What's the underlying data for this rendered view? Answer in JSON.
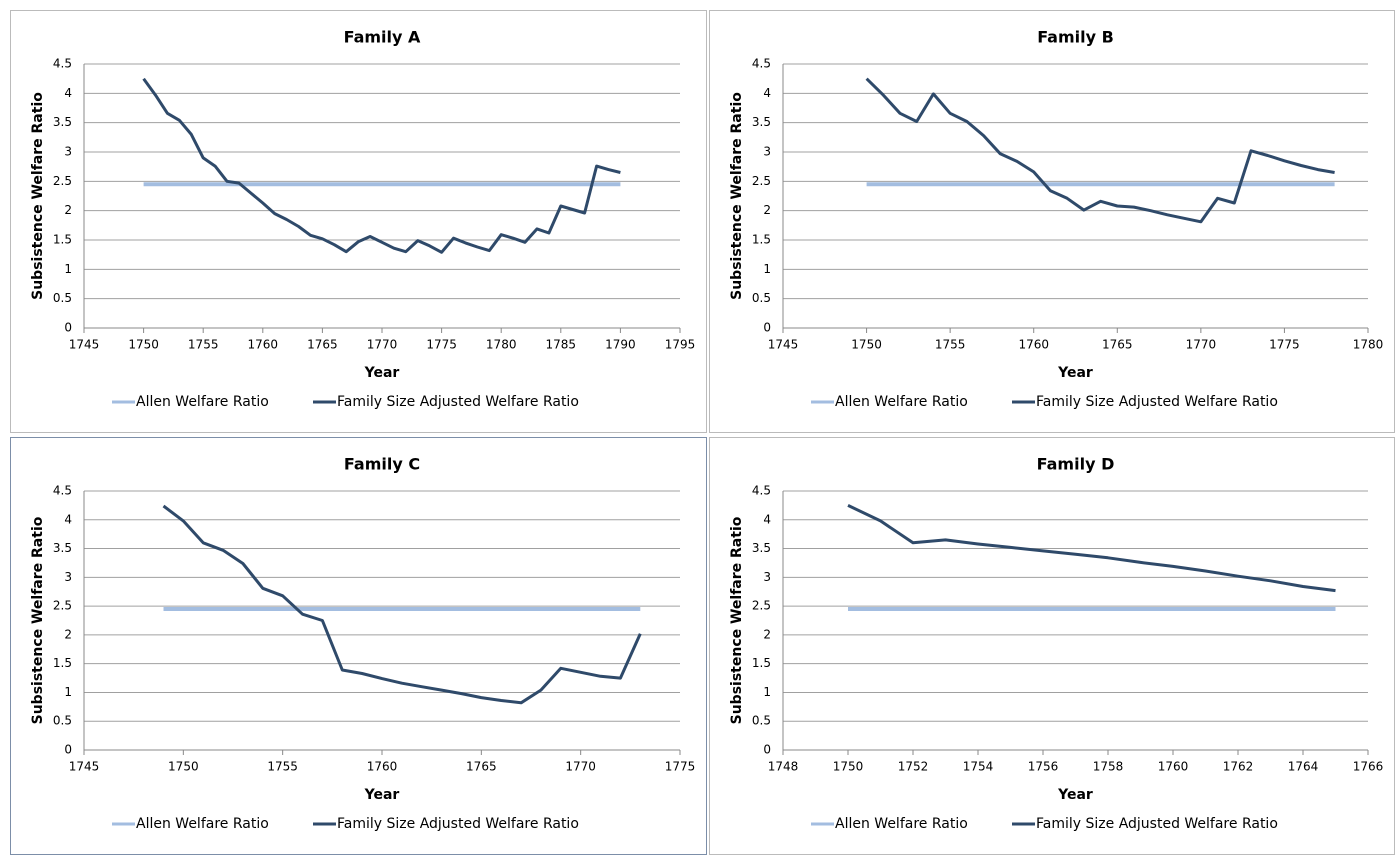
{
  "chart_data": [
    {
      "type": "line",
      "title": "Family A",
      "x_label": "Year",
      "y_label": "Subsistence Welfare Ratio",
      "x": [
        1750,
        1751,
        1752,
        1753,
        1754,
        1755,
        1756,
        1757,
        1758,
        1759,
        1760,
        1761,
        1762,
        1763,
        1764,
        1765,
        1766,
        1767,
        1768,
        1769,
        1770,
        1771,
        1772,
        1773,
        1774,
        1775,
        1776,
        1777,
        1778,
        1779,
        1780,
        1781,
        1782,
        1783,
        1784,
        1785,
        1786,
        1787,
        1788,
        1789,
        1790
      ],
      "series": [
        {
          "name": "Allen Welfare Ratio",
          "color": "#a3bde0",
          "values": [
            2.45,
            2.45,
            2.45,
            2.45,
            2.45,
            2.45,
            2.45,
            2.45,
            2.45,
            2.45,
            2.45,
            2.45,
            2.45,
            2.45,
            2.45,
            2.45,
            2.45,
            2.45,
            2.45,
            2.45,
            2.45,
            2.45,
            2.45,
            2.45,
            2.45,
            2.45,
            2.45,
            2.45,
            2.45,
            2.45,
            2.45,
            2.45,
            2.45,
            2.45,
            2.45,
            2.45,
            2.45,
            2.45,
            2.45,
            2.45,
            2.45
          ]
        },
        {
          "name": "Family Size Adjusted Welfare Ratio",
          "color": "#2f4a6a",
          "values": [
            4.25,
            3.97,
            3.66,
            3.54,
            3.3,
            2.9,
            2.76,
            2.5,
            2.47,
            2.3,
            2.13,
            1.95,
            1.85,
            1.73,
            1.58,
            1.52,
            1.42,
            1.3,
            1.47,
            1.56,
            1.46,
            1.36,
            1.3,
            1.49,
            1.4,
            1.29,
            1.53,
            1.45,
            1.38,
            1.32,
            1.59,
            1.53,
            1.46,
            1.69,
            1.62,
            2.08,
            2.02,
            1.96,
            2.76,
            2.7,
            2.65
          ]
        }
      ],
      "xlim": [
        1745,
        1795
      ],
      "xticks": [
        1745,
        1750,
        1755,
        1760,
        1765,
        1770,
        1775,
        1780,
        1785,
        1790,
        1795
      ],
      "ylim": [
        0,
        4.5
      ],
      "yticks": [
        0,
        0.5,
        1,
        1.5,
        2,
        2.5,
        3,
        3.5,
        4,
        4.5
      ],
      "grid": true,
      "legend": "bottom"
    },
    {
      "type": "line",
      "title": "Family B",
      "x_label": "Year",
      "y_label": "Subsistence Welfare Ratio",
      "x": [
        1750,
        1751,
        1752,
        1753,
        1754,
        1755,
        1756,
        1757,
        1758,
        1759,
        1760,
        1761,
        1762,
        1763,
        1764,
        1765,
        1766,
        1767,
        1768,
        1769,
        1770,
        1771,
        1772,
        1773,
        1774,
        1775,
        1776,
        1777,
        1778
      ],
      "series": [
        {
          "name": "Allen Welfare Ratio",
          "color": "#a3bde0",
          "values": [
            2.45,
            2.45,
            2.45,
            2.45,
            2.45,
            2.45,
            2.45,
            2.45,
            2.45,
            2.45,
            2.45,
            2.45,
            2.45,
            2.45,
            2.45,
            2.45,
            2.45,
            2.45,
            2.45,
            2.45,
            2.45,
            2.45,
            2.45,
            2.45,
            2.45,
            2.45,
            2.45,
            2.45,
            2.45
          ]
        },
        {
          "name": "Family Size Adjusted Welfare Ratio",
          "color": "#2f4a6a",
          "values": [
            4.25,
            3.97,
            3.66,
            3.52,
            3.99,
            3.66,
            3.52,
            3.28,
            2.97,
            2.84,
            2.66,
            2.34,
            2.21,
            2.01,
            2.16,
            2.08,
            2.06,
            2.0,
            1.93,
            1.87,
            1.81,
            2.21,
            2.13,
            3.02,
            2.94,
            2.85,
            2.77,
            2.7,
            2.65
          ]
        }
      ],
      "xlim": [
        1745,
        1780
      ],
      "xticks": [
        1745,
        1750,
        1755,
        1760,
        1765,
        1770,
        1775,
        1780
      ],
      "ylim": [
        0,
        4.5
      ],
      "yticks": [
        0,
        0.5,
        1,
        1.5,
        2,
        2.5,
        3,
        3.5,
        4,
        4.5
      ],
      "grid": true,
      "legend": "bottom"
    },
    {
      "type": "line",
      "title": "Family C",
      "x_label": "Year",
      "y_label": "Subsistence Welfare Ratio",
      "x": [
        1749,
        1750,
        1751,
        1752,
        1753,
        1754,
        1755,
        1756,
        1757,
        1758,
        1759,
        1760,
        1761,
        1762,
        1763,
        1764,
        1765,
        1766,
        1767,
        1768,
        1769,
        1770,
        1771,
        1772,
        1773
      ],
      "series": [
        {
          "name": "Allen Welfare Ratio",
          "color": "#a3bde0",
          "values": [
            2.45,
            2.45,
            2.45,
            2.45,
            2.45,
            2.45,
            2.45,
            2.45,
            2.45,
            2.45,
            2.45,
            2.45,
            2.45,
            2.45,
            2.45,
            2.45,
            2.45,
            2.45,
            2.45,
            2.45,
            2.45,
            2.45,
            2.45,
            2.45,
            2.45
          ]
        },
        {
          "name": "Family Size Adjusted Welfare Ratio",
          "color": "#2f4a6a",
          "values": [
            4.24,
            3.98,
            3.6,
            3.47,
            3.24,
            2.81,
            2.68,
            2.36,
            2.25,
            1.39,
            1.33,
            1.24,
            1.16,
            1.1,
            1.04,
            0.98,
            0.91,
            0.86,
            0.82,
            1.04,
            1.42,
            1.35,
            1.28,
            1.25,
            2.02
          ]
        }
      ],
      "xlim": [
        1745,
        1775
      ],
      "xticks": [
        1745,
        1750,
        1755,
        1760,
        1765,
        1770,
        1775
      ],
      "ylim": [
        0,
        4.5
      ],
      "yticks": [
        0,
        0.5,
        1,
        1.5,
        2,
        2.5,
        3,
        3.5,
        4,
        4.5
      ],
      "grid": true,
      "legend": "bottom"
    },
    {
      "type": "line",
      "title": "Family D",
      "x_label": "Year",
      "y_label": "Subsistence Welfare Ratio",
      "x": [
        1750,
        1751,
        1752,
        1753,
        1754,
        1755,
        1756,
        1757,
        1758,
        1759,
        1760,
        1761,
        1762,
        1763,
        1764,
        1765
      ],
      "series": [
        {
          "name": "Allen Welfare Ratio",
          "color": "#a3bde0",
          "values": [
            2.45,
            2.45,
            2.45,
            2.45,
            2.45,
            2.45,
            2.45,
            2.45,
            2.45,
            2.45,
            2.45,
            2.45,
            2.45,
            2.45,
            2.45,
            2.45
          ]
        },
        {
          "name": "Family Size Adjusted Welfare Ratio",
          "color": "#2f4a6a",
          "values": [
            4.25,
            3.98,
            3.6,
            3.65,
            3.58,
            3.52,
            3.46,
            3.4,
            3.34,
            3.26,
            3.19,
            3.11,
            3.02,
            2.94,
            2.84,
            2.77
          ]
        }
      ],
      "xlim": [
        1748,
        1766
      ],
      "xticks": [
        1748,
        1750,
        1752,
        1754,
        1756,
        1758,
        1760,
        1762,
        1764,
        1766
      ],
      "ylim": [
        0,
        4.5
      ],
      "yticks": [
        0,
        0.5,
        1,
        1.5,
        2,
        2.5,
        3,
        3.5,
        4,
        4.5
      ],
      "grid": true,
      "legend": "bottom"
    }
  ]
}
